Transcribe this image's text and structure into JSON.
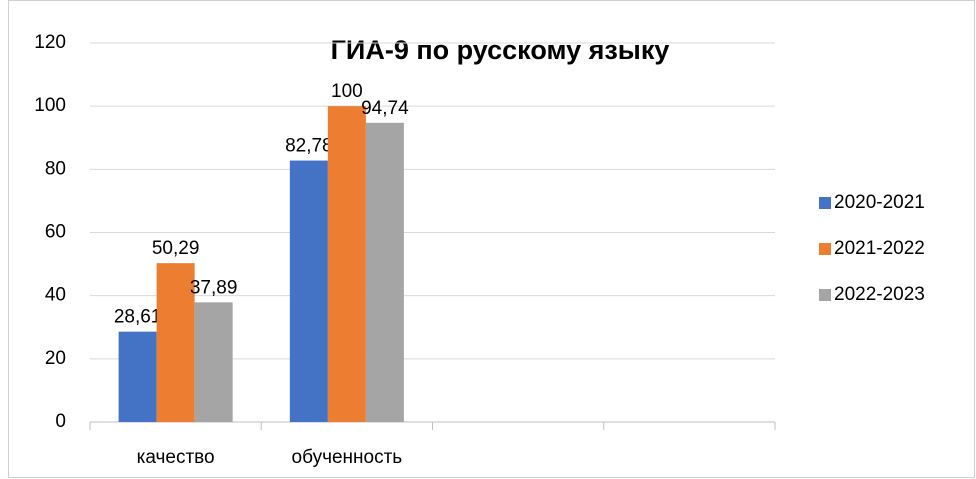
{
  "chart_data": {
    "type": "bar",
    "title": "ГИА-9 по русскому языку",
    "categories": [
      "качество",
      "обученность",
      null,
      null
    ],
    "series": [
      {
        "name": "2020-2021",
        "color": "#4472c4",
        "values": [
          28.61,
          82.78,
          null,
          null
        ],
        "value_labels": [
          "28,61",
          "82,78",
          null,
          null
        ]
      },
      {
        "name": "2021-2022",
        "color": "#ed7d31",
        "values": [
          50.29,
          100,
          null,
          null
        ],
        "value_labels": [
          "50,29",
          "100",
          null,
          null
        ]
      },
      {
        "name": "2022-2023",
        "color": "#a5a5a5",
        "values": [
          37.89,
          94.74,
          null,
          null
        ],
        "value_labels": [
          "37,89",
          "94,74",
          null,
          null
        ]
      }
    ],
    "ylim": [
      0,
      120
    ],
    "yticks": [
      0,
      20,
      40,
      60,
      80,
      100,
      120
    ],
    "grid": true,
    "legend": "right"
  }
}
